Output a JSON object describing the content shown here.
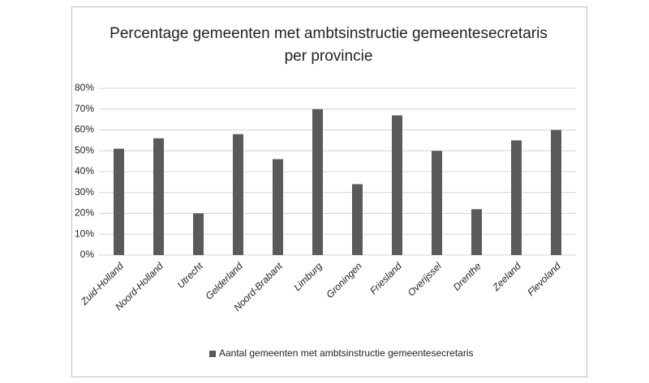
{
  "chart_data": {
    "type": "bar",
    "title": [
      "Percentage gemeenten met ambtsinstructie gemeentesecretaris",
      "per provincie"
    ],
    "categories": [
      "Zuid-Holland",
      "Noord-Holland",
      "Utrecht",
      "Gelderland",
      "Noord-Brabant",
      "Limburg",
      "Groningen",
      "Friesland",
      "Overijssel",
      "Drenthe",
      "Zeeland",
      "Flevoland"
    ],
    "series": [
      {
        "name": "Aantal gemeenten  met ambtsinstructie gemeentesecretaris",
        "color": "#5a5a5a",
        "values": [
          51,
          56,
          20,
          58,
          46,
          70,
          34,
          67,
          50,
          22,
          55,
          60
        ]
      }
    ],
    "ylim": [
      0,
      80
    ],
    "yticks": [
      {
        "value": 0,
        "label": "0%"
      },
      {
        "value": 10,
        "label": "10%"
      },
      {
        "value": 20,
        "label": "20%"
      },
      {
        "value": 30,
        "label": "30%"
      },
      {
        "value": 40,
        "label": "40%"
      },
      {
        "value": 50,
        "label": "50%"
      },
      {
        "value": 60,
        "label": "60%"
      },
      {
        "value": 70,
        "label": "70%"
      },
      {
        "value": 80,
        "label": "80%"
      }
    ],
    "grid": true,
    "legend": "bottom"
  }
}
